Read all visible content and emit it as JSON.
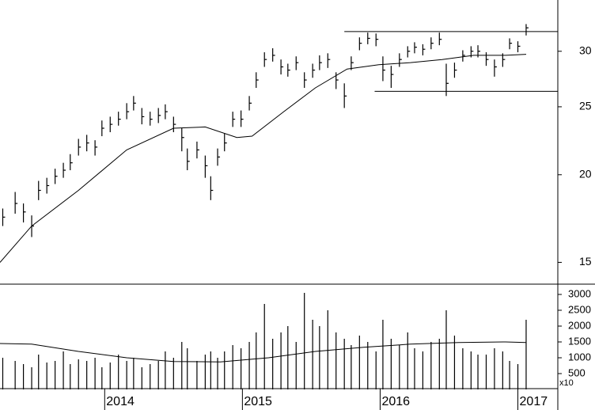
{
  "chart_data": [
    {
      "type": "ohlc",
      "color": "#000000",
      "log_scale": true,
      "xlim": [
        2013.24,
        2017.29
      ],
      "ylim": [
        14,
        35.5
      ],
      "yticks": [
        15,
        20,
        25,
        30
      ],
      "x": [
        2013.26,
        2013.35,
        2013.41,
        2013.47,
        2013.52,
        2013.58,
        2013.64,
        2013.7,
        2013.75,
        2013.81,
        2013.87,
        2013.93,
        2013.98,
        2014.04,
        2014.1,
        2014.16,
        2014.21,
        2014.27,
        2014.33,
        2014.39,
        2014.44,
        2014.5,
        2014.56,
        2014.6,
        2014.67,
        2014.73,
        2014.77,
        2014.82,
        2014.87,
        2014.93,
        2014.99,
        2015.05,
        2015.1,
        2015.16,
        2015.22,
        2015.28,
        2015.33,
        2015.39,
        2015.45,
        2015.51,
        2015.56,
        2015.62,
        2015.68,
        2015.74,
        2015.79,
        2015.85,
        2015.91,
        2015.97,
        2016.02,
        2016.08,
        2016.14,
        2016.2,
        2016.25,
        2016.31,
        2016.37,
        2016.43,
        2016.48,
        2016.54,
        2016.6,
        2016.66,
        2016.71,
        2016.77,
        2016.83,
        2016.89,
        2016.94,
        2017.0,
        2017.06
      ],
      "high": [
        17.9,
        18.9,
        18.2,
        17.5,
        19.6,
        19.8,
        20.4,
        20.8,
        21.4,
        22.5,
        22.8,
        22.4,
        23.9,
        24.2,
        24.6,
        25.3,
        25.9,
        24.9,
        24.6,
        24.9,
        25.2,
        24.2,
        23.3,
        21.8,
        22.3,
        21.3,
        19.9,
        21.8,
        22.9,
        24.6,
        24.7,
        25.9,
        28.0,
        29.9,
        30.3,
        29.2,
        28.8,
        29.5,
        28.0,
        28.8,
        29.6,
        29.8,
        28.0,
        27.0,
        29.5,
        31.4,
        31.9,
        31.8,
        29.5,
        28.6,
        29.8,
        30.5,
        30.9,
        30.7,
        31.4,
        31.9,
        28.8,
        28.9,
        30.1,
        30.5,
        30.6,
        29.9,
        29.2,
        29.8,
        31.3,
        31.0,
        32.8
      ],
      "low": [
        16.9,
        17.6,
        17.1,
        16.3,
        18.4,
        18.8,
        19.4,
        19.8,
        20.3,
        21.3,
        21.6,
        21.3,
        22.7,
        23.0,
        23.5,
        24.0,
        24.7,
        23.6,
        23.5,
        23.7,
        24.0,
        23.0,
        21.6,
        20.3,
        21.1,
        19.8,
        18.4,
        20.6,
        21.6,
        23.4,
        23.4,
        24.7,
        26.6,
        28.5,
        29.0,
        27.8,
        27.6,
        28.2,
        26.6,
        27.5,
        28.2,
        28.4,
        26.5,
        24.9,
        28.2,
        30.1,
        30.7,
        30.5,
        27.2,
        26.6,
        28.5,
        29.4,
        29.8,
        29.6,
        30.2,
        30.6,
        25.9,
        27.5,
        29.0,
        29.4,
        29.4,
        28.6,
        27.6,
        28.5,
        30.2,
        29.9,
        31.6
      ],
      "close": [
        17.4,
        18.2,
        17.7,
        16.9,
        19.0,
        19.3,
        19.9,
        20.3,
        20.8,
        21.9,
        22.2,
        21.9,
        23.3,
        23.6,
        24.0,
        24.6,
        25.3,
        24.2,
        24.0,
        24.3,
        24.6,
        23.6,
        22.6,
        20.9,
        21.7,
        20.6,
        19.0,
        21.2,
        22.2,
        24.0,
        24.0,
        25.3,
        27.3,
        29.2,
        29.6,
        28.5,
        28.2,
        28.9,
        27.3,
        28.2,
        28.9,
        29.2,
        27.3,
        25.9,
        28.9,
        30.8,
        31.3,
        31.2,
        28.2,
        27.8,
        29.2,
        30.0,
        30.4,
        30.2,
        30.8,
        31.2,
        27.0,
        28.2,
        29.6,
        30.0,
        30.0,
        29.2,
        28.5,
        29.2,
        30.8,
        30.5,
        32.4
      ],
      "moving_average": {
        "x": [
          2013.24,
          2013.47,
          2013.81,
          2014.16,
          2014.5,
          2014.73,
          2014.96,
          2015.07,
          2015.3,
          2015.53,
          2015.76,
          2015.99,
          2016.22,
          2016.45,
          2016.68,
          2016.91,
          2017.06
        ],
        "values": [
          15.0,
          16.9,
          19.0,
          21.7,
          23.3,
          23.4,
          22.6,
          22.7,
          24.6,
          26.6,
          28.3,
          28.7,
          28.9,
          29.2,
          29.6,
          29.6,
          29.7
        ]
      },
      "lines": [
        {
          "value": 32.0,
          "xlim": [
            2015.74,
            2017.29
          ]
        },
        {
          "value": 26.3,
          "xlim": [
            2015.96,
            2017.29
          ]
        }
      ]
    },
    {
      "type": "bar",
      "color": "#000000",
      "unit_label": "x10",
      "xlim": [
        2013.24,
        2017.29
      ],
      "xticks": [
        2014,
        2015,
        2016,
        2017
      ],
      "ylim": [
        0,
        3300
      ],
      "yticks": [
        500,
        1000,
        1500,
        2000,
        2500,
        3000
      ],
      "x": [
        2013.26,
        2013.35,
        2013.41,
        2013.47,
        2013.52,
        2013.58,
        2013.64,
        2013.7,
        2013.75,
        2013.81,
        2013.87,
        2013.93,
        2013.98,
        2014.04,
        2014.1,
        2014.16,
        2014.21,
        2014.27,
        2014.33,
        2014.39,
        2014.44,
        2014.5,
        2014.56,
        2014.6,
        2014.67,
        2014.73,
        2014.77,
        2014.82,
        2014.87,
        2014.93,
        2014.99,
        2015.05,
        2015.1,
        2015.16,
        2015.22,
        2015.28,
        2015.33,
        2015.39,
        2015.45,
        2015.51,
        2015.56,
        2015.62,
        2015.68,
        2015.74,
        2015.79,
        2015.85,
        2015.91,
        2015.97,
        2016.02,
        2016.08,
        2016.14,
        2016.2,
        2016.25,
        2016.31,
        2016.37,
        2016.43,
        2016.48,
        2016.54,
        2016.6,
        2016.66,
        2016.71,
        2016.77,
        2016.83,
        2016.89,
        2016.94,
        2017.0,
        2017.06
      ],
      "values": [
        1000,
        900,
        800,
        700,
        1100,
        850,
        900,
        1200,
        800,
        950,
        900,
        1000,
        700,
        850,
        1100,
        900,
        1000,
        700,
        800,
        900,
        1200,
        1000,
        1500,
        1300,
        900,
        1100,
        1200,
        1000,
        1200,
        1400,
        1300,
        1500,
        1800,
        2700,
        1600,
        1800,
        2000,
        1500,
        3050,
        2200,
        2000,
        2500,
        1800,
        1600,
        1400,
        1700,
        1500,
        1200,
        2200,
        1600,
        1400,
        1800,
        1300,
        1200,
        1500,
        1600,
        2500,
        1700,
        1300,
        1200,
        1100,
        1100,
        1300,
        1200,
        900,
        800,
        2200
      ],
      "moving_average": {
        "x": [
          2013.24,
          2013.47,
          2013.81,
          2014.16,
          2014.5,
          2014.84,
          2015.19,
          2015.53,
          2015.88,
          2016.22,
          2016.57,
          2016.91,
          2017.06
        ],
        "values": [
          1450,
          1430,
          1200,
          1000,
          880,
          870,
          1000,
          1200,
          1330,
          1430,
          1480,
          1500,
          1480
        ]
      }
    }
  ]
}
